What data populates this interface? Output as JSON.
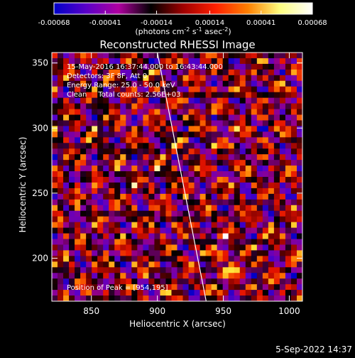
{
  "chart_data": {
    "type": "heatmap",
    "title": "Reconstructed RHESSI Image",
    "xlabel": "Heliocentric X (arcsec)",
    "ylabel": "Heliocentric Y (arcsec)",
    "xlim": [
      820,
      1010
    ],
    "ylim": [
      167,
      358
    ],
    "x_ticks": [
      850,
      900,
      950,
      1000
    ],
    "y_ticks": [
      200,
      250,
      300,
      350
    ],
    "grid": false,
    "colorbar": {
      "tick_values": [
        -0.00068,
        -0.00041,
        -0.00014,
        0.00014,
        0.00041,
        0.00068
      ],
      "tick_labels": [
        "-0.00068",
        "-0.00041",
        "-0.00014",
        "0.00014",
        "0.00041",
        "0.00068"
      ],
      "units_main": "(photons cm",
      "units_sup1": "-2",
      "units_mid": " s",
      "units_sup2": "-1",
      "units_end": " asec",
      "units_sup3": "-2",
      "units_close": ")",
      "colors": [
        "#0000c8",
        "#5a00c8",
        "#b000a0",
        "#000000",
        "#a00000",
        "#ff2000",
        "#ff8000",
        "#ffff80",
        "#ffffff"
      ]
    },
    "info_lines": [
      "15-May-2016 16:37:44.000 to 16:43:44.000",
      "Detectors: 3F 8F, Att 0",
      "Energy Range: 25.0 - 50.0 keV",
      "Clean     Total counts: 2.56E+03"
    ],
    "peak_text": "Position of Peak = [954,195]",
    "peak": [
      954,
      195
    ],
    "limb_line": [
      [
        900,
        358
      ],
      [
        937,
        167
      ]
    ]
  },
  "footer": {
    "timestamp": "5-Sep-2022 14:37"
  }
}
